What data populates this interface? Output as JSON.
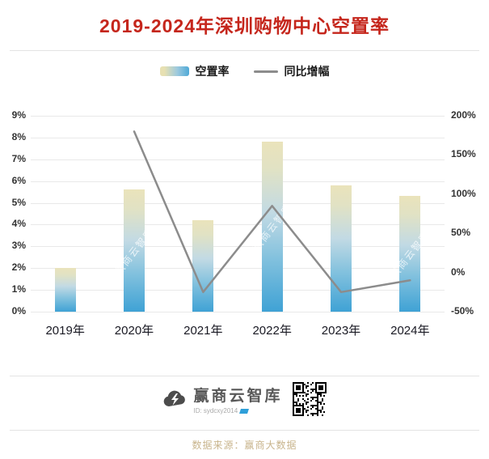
{
  "title": "2019-2024年深圳购物中心空置率",
  "legend": {
    "bar": "空置率",
    "line": "同比增幅"
  },
  "watermark": "赢商云智库",
  "colors": {
    "title": "#c5261c",
    "bar_top": "#eae3bb",
    "bar_bottom": "#3fa2d5",
    "line": "#8c8c8c",
    "grid": "#e9e9e9",
    "source_text": "#c8b48c"
  },
  "chart_data": {
    "type": "bar",
    "title": "2019-2024年深圳购物中心空置率",
    "categories": [
      "2019年",
      "2020年",
      "2021年",
      "2022年",
      "2023年",
      "2024年"
    ],
    "series": [
      {
        "name": "空置率",
        "type": "bar",
        "axis": "left",
        "unit": "%",
        "values": [
          2.0,
          5.6,
          4.2,
          7.8,
          5.8,
          5.3
        ]
      },
      {
        "name": "同比增幅",
        "type": "line",
        "axis": "right",
        "unit": "%",
        "values": [
          null,
          180,
          -25,
          85,
          -25,
          -10
        ]
      }
    ],
    "left_axis": {
      "min": 0,
      "max": 9,
      "ticks": [
        "0%",
        "1%",
        "2%",
        "3%",
        "4%",
        "5%",
        "6%",
        "7%",
        "8%",
        "9%"
      ]
    },
    "right_axis": {
      "min": -50,
      "max": 200,
      "ticks": [
        "-50%",
        "0%",
        "50%",
        "100%",
        "150%",
        "200%"
      ]
    },
    "grid": true,
    "legend_position": "top"
  },
  "footer": {
    "brand": "赢商云智库",
    "id": "ID: sydcxy2014",
    "source": "数据来源：赢商大数据"
  }
}
